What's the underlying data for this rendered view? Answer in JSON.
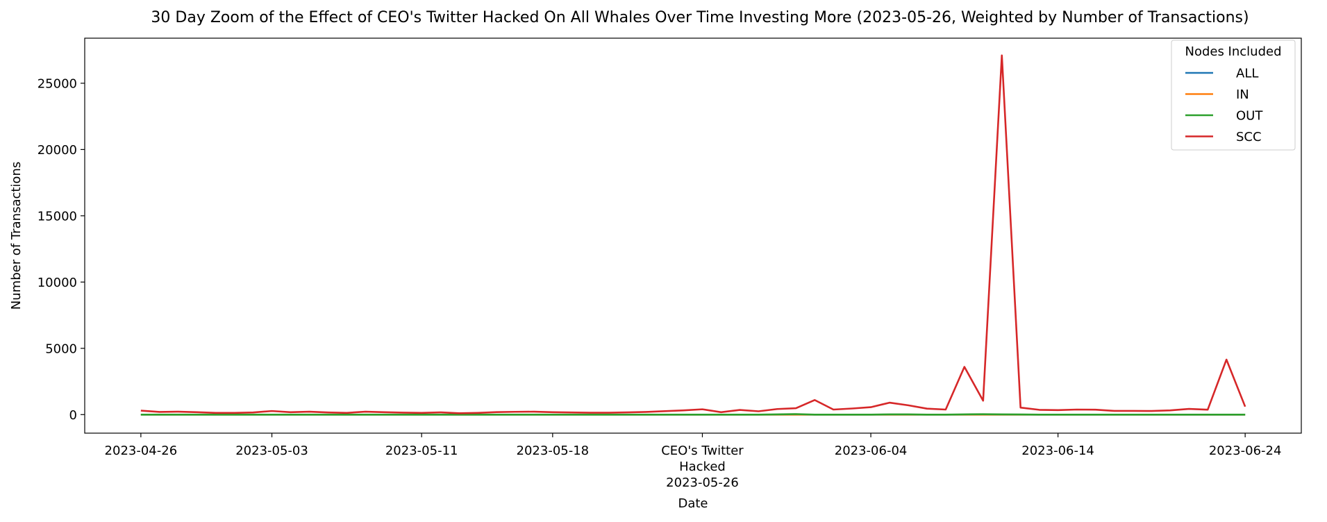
{
  "chart_data": {
    "type": "line",
    "title": "30 Day Zoom of the Effect of CEO's Twitter Hacked On All Whales Over Time Investing More (2023-05-26, Weighted by Number of Transactions)",
    "xlabel": "Date",
    "ylabel": "Number of Transactions",
    "xlim": [
      "2023-04-23",
      "2023-06-27"
    ],
    "ylim": [
      -1400,
      28400
    ],
    "yticks": [
      0,
      5000,
      10000,
      15000,
      20000,
      25000
    ],
    "xticks": [
      {
        "date": "2023-04-26",
        "label": "2023-04-26"
      },
      {
        "date": "2023-05-03",
        "label": "2023-05-03"
      },
      {
        "date": "2023-05-11",
        "label": "2023-05-11"
      },
      {
        "date": "2023-05-18",
        "label": "2023-05-18"
      },
      {
        "date": "2023-05-26",
        "label": "CEO's Twitter\nHacked\n2023-05-26"
      },
      {
        "date": "2023-06-04",
        "label": "2023-06-04"
      },
      {
        "date": "2023-06-14",
        "label": "2023-06-14"
      },
      {
        "date": "2023-06-24",
        "label": "2023-06-24"
      }
    ],
    "legend": {
      "title": "Nodes Included",
      "placement": "top-right"
    },
    "x": [
      "2023-04-26",
      "2023-04-27",
      "2023-04-28",
      "2023-04-29",
      "2023-04-30",
      "2023-05-01",
      "2023-05-02",
      "2023-05-03",
      "2023-05-04",
      "2023-05-05",
      "2023-05-06",
      "2023-05-07",
      "2023-05-08",
      "2023-05-09",
      "2023-05-10",
      "2023-05-11",
      "2023-05-12",
      "2023-05-13",
      "2023-05-14",
      "2023-05-15",
      "2023-05-16",
      "2023-05-17",
      "2023-05-18",
      "2023-05-19",
      "2023-05-20",
      "2023-05-21",
      "2023-05-22",
      "2023-05-23",
      "2023-05-24",
      "2023-05-25",
      "2023-05-26",
      "2023-05-27",
      "2023-05-28",
      "2023-05-29",
      "2023-05-30",
      "2023-05-31",
      "2023-06-01",
      "2023-06-02",
      "2023-06-03",
      "2023-06-04",
      "2023-06-05",
      "2023-06-06",
      "2023-06-07",
      "2023-06-08",
      "2023-06-09",
      "2023-06-10",
      "2023-06-11",
      "2023-06-12",
      "2023-06-13",
      "2023-06-14",
      "2023-06-15",
      "2023-06-16",
      "2023-06-17",
      "2023-06-18",
      "2023-06-19",
      "2023-06-20",
      "2023-06-21",
      "2023-06-22",
      "2023-06-23",
      "2023-06-24"
    ],
    "series": [
      {
        "name": "ALL",
        "color": "#1f77b4",
        "values": [
          0,
          0,
          0,
          0,
          0,
          0,
          0,
          0,
          0,
          0,
          0,
          0,
          0,
          0,
          0,
          0,
          0,
          0,
          0,
          0,
          0,
          0,
          0,
          0,
          0,
          0,
          0,
          0,
          0,
          0,
          0,
          0,
          0,
          0,
          0,
          0,
          0,
          0,
          0,
          0,
          0,
          0,
          0,
          0,
          0,
          0,
          0,
          0,
          0,
          0,
          0,
          0,
          0,
          0,
          0,
          0,
          0,
          0,
          0,
          0
        ]
      },
      {
        "name": "IN",
        "color": "#ff7f0e",
        "values": [
          0,
          0,
          0,
          0,
          0,
          0,
          0,
          0,
          0,
          0,
          0,
          0,
          0,
          0,
          0,
          0,
          0,
          0,
          0,
          0,
          0,
          0,
          0,
          0,
          0,
          0,
          0,
          0,
          0,
          0,
          0,
          0,
          0,
          0,
          0,
          0,
          0,
          0,
          0,
          0,
          0,
          0,
          0,
          0,
          0,
          0,
          0,
          0,
          0,
          0,
          0,
          0,
          0,
          0,
          0,
          0,
          0,
          0,
          0,
          0
        ]
      },
      {
        "name": "OUT",
        "color": "#2ca02c",
        "values": [
          0,
          0,
          0,
          0,
          0,
          0,
          0,
          0,
          0,
          0,
          0,
          0,
          0,
          0,
          0,
          0,
          0,
          0,
          0,
          0,
          0,
          0,
          0,
          0,
          0,
          0,
          0,
          0,
          0,
          0,
          0,
          0,
          0,
          0,
          20,
          40,
          0,
          0,
          0,
          0,
          20,
          20,
          0,
          0,
          20,
          30,
          20,
          10,
          0,
          0,
          0,
          0,
          0,
          0,
          0,
          0,
          0,
          0,
          0,
          0
        ]
      },
      {
        "name": "SCC",
        "color": "#d62728",
        "values": [
          300,
          200,
          220,
          180,
          130,
          130,
          160,
          270,
          180,
          220,
          160,
          130,
          220,
          180,
          150,
          130,
          170,
          100,
          130,
          190,
          210,
          220,
          180,
          160,
          140,
          140,
          170,
          200,
          260,
          320,
          400,
          180,
          350,
          250,
          420,
          480,
          1100,
          380,
          460,
          560,
          900,
          700,
          450,
          380,
          3600,
          1050,
          27100,
          530,
          360,
          340,
          380,
          370,
          280,
          280,
          270,
          320,
          430,
          370,
          4150,
          600
        ]
      }
    ]
  }
}
